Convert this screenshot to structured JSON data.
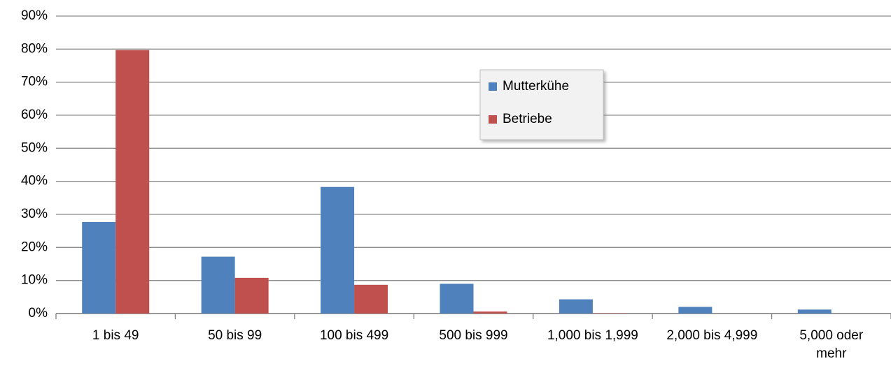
{
  "chart_data": {
    "type": "bar",
    "categories": [
      "1 bis 49",
      "50 bis 99",
      "100 bis 499",
      "500 bis 999",
      "1,000 bis 1,999",
      "2,000 bis 4,999",
      "5,000 oder mehr"
    ],
    "series": [
      {
        "name": "Mutterkühe",
        "color": "#4f81bd",
        "values": [
          27.7,
          17.2,
          38.3,
          9.0,
          4.3,
          2.0,
          1.2
        ]
      },
      {
        "name": "Betriebe",
        "color": "#c0504d",
        "values": [
          79.7,
          10.8,
          8.7,
          0.6,
          0.1,
          0,
          0
        ]
      }
    ],
    "ylim": [
      0,
      90
    ],
    "yticks": [
      {
        "value": 0,
        "label": "0%"
      },
      {
        "value": 10,
        "label": "10%"
      },
      {
        "value": 20,
        "label": "20%"
      },
      {
        "value": 30,
        "label": "30%"
      },
      {
        "value": 40,
        "label": "40%"
      },
      {
        "value": 50,
        "label": "50%"
      },
      {
        "value": 60,
        "label": "60%"
      },
      {
        "value": 70,
        "label": "70%"
      },
      {
        "value": 80,
        "label": "80%"
      },
      {
        "value": 90,
        "label": "90%"
      }
    ],
    "grid": true,
    "legend": "top-center"
  }
}
